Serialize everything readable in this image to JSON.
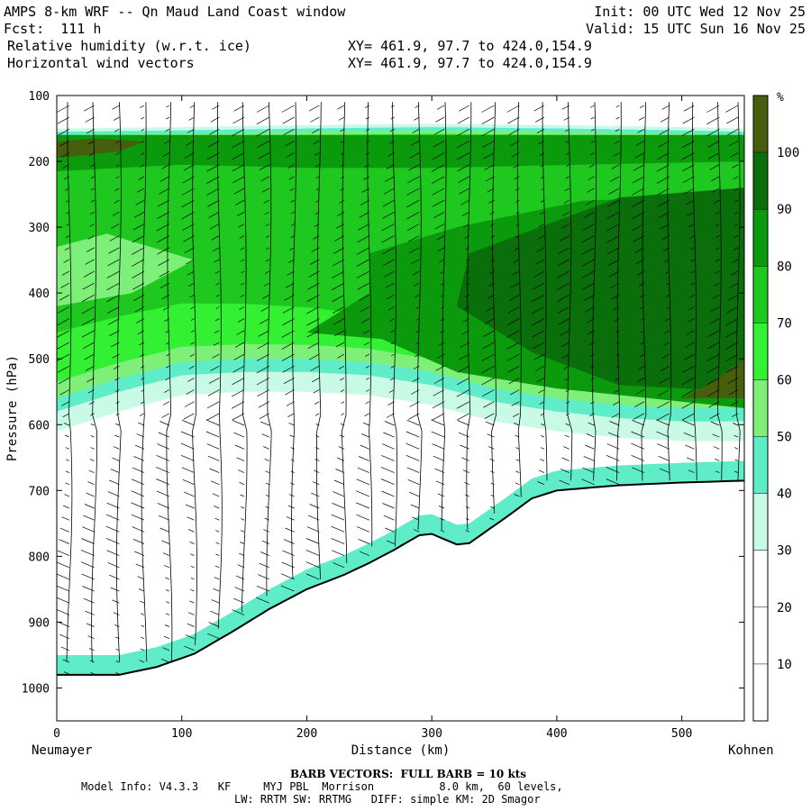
{
  "header": {
    "title": "AMPS 8-km WRF -- Qn Maud Land Coast window",
    "fcst": "Fcst:  111 h",
    "field1": "Relative humidity (w.r.t. ice)",
    "field2": "Horizontal wind vectors",
    "xy1": "XY= 461.9, 97.7 to 424.0,154.9",
    "xy2": "XY= 461.9, 97.7 to 424.0,154.9",
    "init": "Init: 00 UTC Wed 12 Nov 25",
    "valid": "Valid: 15 UTC Sun 16 Nov 25"
  },
  "footer": {
    "barb_note": "BARB VECTORS:  FULL BARB = 10 kts",
    "model_line1": "Model Info: V4.3.3   KF     MYJ PBL  Morrison          8.0 km,  60 levels,",
    "model_line2": "LW: RRTM SW: RRTMG   DIFF: simple KM: 2D Smagor"
  },
  "chart_data": {
    "type": "cross-section (filled contour + wind barbs)",
    "xlabel": "Distance (km)",
    "ylabel": "Pressure (hPa)",
    "x_start_label": "Neumayer",
    "x_end_label": "Kohnen",
    "xlim": [
      0,
      550
    ],
    "ylim": [
      100,
      1050
    ],
    "y_ticks": [
      100,
      200,
      300,
      400,
      500,
      600,
      700,
      800,
      900,
      1000
    ],
    "x_ticks": [
      0,
      100,
      200,
      300,
      400,
      500
    ],
    "colorbar": {
      "unit": "%",
      "levels": [
        10,
        20,
        30,
        40,
        50,
        60,
        70,
        80,
        90,
        100
      ],
      "colors": [
        "#ffffff",
        "#ffffff",
        "#ffffff",
        "#c8fae6",
        "#5eedc8",
        "#7ef07a",
        "#33f033",
        "#1ec81e",
        "#0b9a0b",
        "#0a6e0a",
        "#455f0c"
      ]
    },
    "terrain_surface_hPa": [
      [
        0,
        980
      ],
      [
        50,
        980
      ],
      [
        80,
        968
      ],
      [
        110,
        948
      ],
      [
        140,
        915
      ],
      [
        170,
        880
      ],
      [
        200,
        850
      ],
      [
        230,
        828
      ],
      [
        250,
        810
      ],
      [
        270,
        790
      ],
      [
        290,
        768
      ],
      [
        300,
        766
      ],
      [
        320,
        782
      ],
      [
        330,
        780
      ],
      [
        345,
        760
      ],
      [
        360,
        740
      ],
      [
        380,
        712
      ],
      [
        400,
        700
      ],
      [
        450,
        692
      ],
      [
        500,
        688
      ],
      [
        550,
        685
      ]
    ],
    "moist_layer_top_hPa": [
      [
        0,
        150
      ],
      [
        100,
        148
      ],
      [
        200,
        145
      ],
      [
        300,
        143
      ],
      [
        400,
        145
      ],
      [
        500,
        148
      ],
      [
        550,
        150
      ]
    ],
    "moist_layer_bottom_hPa": [
      [
        0,
        560
      ],
      [
        50,
        530
      ],
      [
        100,
        505
      ],
      [
        150,
        500
      ],
      [
        200,
        500
      ],
      [
        250,
        505
      ],
      [
        300,
        520
      ],
      [
        350,
        545
      ],
      [
        400,
        560
      ],
      [
        450,
        570
      ],
      [
        500,
        575
      ],
      [
        550,
        575
      ]
    ],
    "wind_barb_columns_km": [
      10,
      30,
      50,
      70,
      90,
      110,
      130,
      150,
      170,
      190,
      210,
      230,
      250,
      270,
      290,
      310,
      330,
      350,
      370,
      390,
      410,
      430,
      450,
      470,
      490,
      510,
      530,
      545
    ]
  }
}
